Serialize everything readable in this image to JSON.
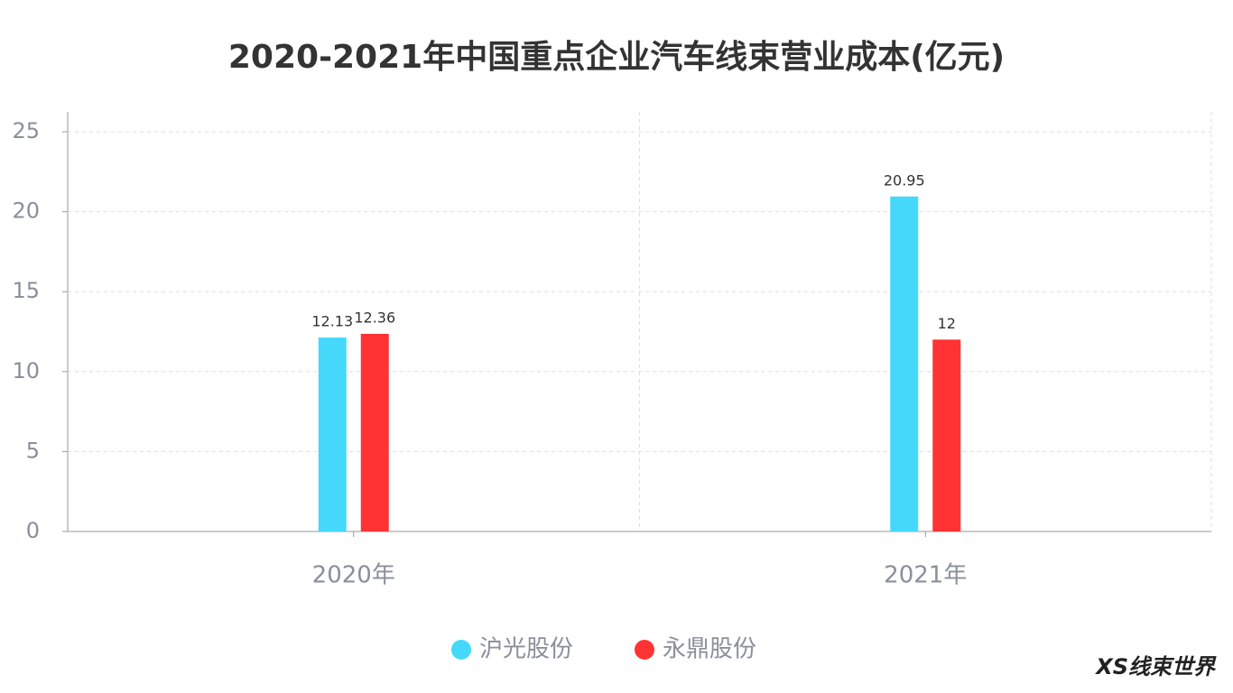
{
  "chart_data": {
    "type": "bar",
    "title": "2020-2021年中国重点企业汽车线束营业成本(亿元)",
    "categories": [
      "2020年",
      "2021年"
    ],
    "series": [
      {
        "name": "沪光股份",
        "color": "#44d9fb",
        "values": [
          12.13,
          20.95
        ]
      },
      {
        "name": "永鼎股份",
        "color": "#ff3333",
        "values": [
          12.36,
          12
        ]
      }
    ],
    "ylim": [
      0,
      25
    ],
    "yticks": [
      0,
      5,
      10,
      15,
      20,
      25
    ],
    "grid": true,
    "legend": "bottom"
  },
  "logo": "XS线束世界"
}
